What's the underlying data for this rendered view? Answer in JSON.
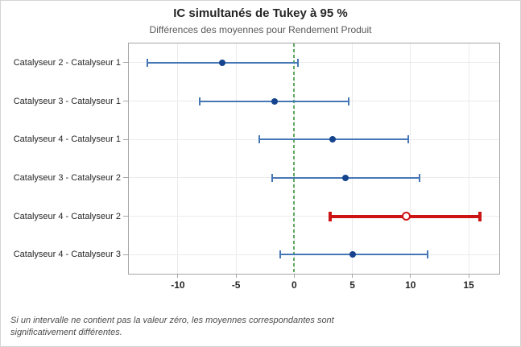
{
  "footnote": [
    "Si un intervalle ne contient pas la valeur zéro, les moyennes correspondantes sont",
    "significativement différentes."
  ],
  "chart_data": {
    "type": "interval",
    "title": "IC simultanés de Tukey à 95 %",
    "subtitle": "Différences des moyennes pour Rendement Produit",
    "xlabel": "",
    "ylabel": "",
    "intervals": [
      {
        "label": "Catalyseur 2 - Catalyseur 1",
        "lower": -12.6,
        "center": -6.2,
        "upper": 0.3,
        "significant": false
      },
      {
        "label": "Catalyseur 3 - Catalyseur 1",
        "lower": -8.1,
        "center": -1.7,
        "upper": 4.7,
        "significant": false
      },
      {
        "label": "Catalyseur 4 - Catalyseur 1",
        "lower": -3.0,
        "center": 3.3,
        "upper": 9.8,
        "significant": false
      },
      {
        "label": "Catalyseur 3 - Catalyseur 2",
        "lower": -1.9,
        "center": 4.4,
        "upper": 10.8,
        "significant": false
      },
      {
        "label": "Catalyseur 4 - Catalyseur 2",
        "lower": 3.1,
        "center": 9.6,
        "upper": 16.0,
        "significant": true
      },
      {
        "label": "Catalyseur 4 - Catalyseur 3",
        "lower": -1.2,
        "center": 5.0,
        "upper": 11.5,
        "significant": false
      }
    ],
    "xticks": [
      -10,
      -5,
      0,
      5,
      10,
      15
    ],
    "xlim": [
      -14.22,
      17.63
    ],
    "reference_line_x": 0,
    "grid": true,
    "legend": "none",
    "colors": {
      "interval_line": "#4677b5",
      "interval_marker": "#15438e",
      "significant": "#cc1414",
      "reference_line": "#5fa860",
      "gridline": "#ebebeb",
      "plot_border": "#a6a6a6"
    }
  }
}
